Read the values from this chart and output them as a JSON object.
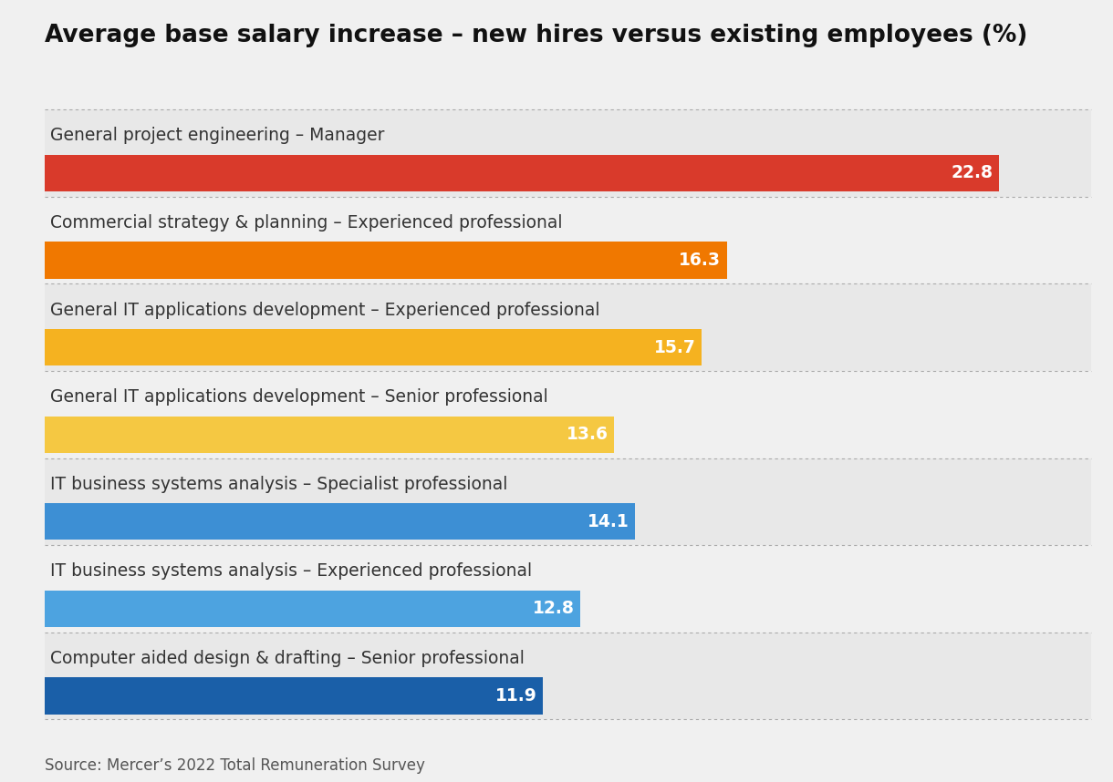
{
  "title": "Average base salary increase – new hires versus existing employees (%)",
  "categories": [
    "General project engineering – Manager",
    "Commercial strategy & planning – Experienced professional",
    "General IT applications development – Experienced professional",
    "General IT applications development – Senior professional",
    "IT business systems analysis – Specialist professional",
    "IT business systems analysis – Experienced professional",
    "Computer aided design & drafting – Senior professional"
  ],
  "values": [
    22.8,
    16.3,
    15.7,
    13.6,
    14.1,
    12.8,
    11.9
  ],
  "bar_colors": [
    "#d93a2b",
    "#f07800",
    "#f5b220",
    "#f5c842",
    "#3d8fd4",
    "#4da3e0",
    "#1a5fa8"
  ],
  "row_bg_colors": [
    "#e8e8e8",
    "#f0f0f0",
    "#e8e8e8",
    "#f0f0f0",
    "#e8e8e8",
    "#f0f0f0",
    "#e8e8e8"
  ],
  "source": "Source: Mercer’s 2022 Total Remuneration Survey",
  "background_color": "#f0f0f0",
  "title_fontsize": 19,
  "category_fontsize": 13.5,
  "value_fontsize": 13.5,
  "source_fontsize": 12,
  "max_val": 25
}
